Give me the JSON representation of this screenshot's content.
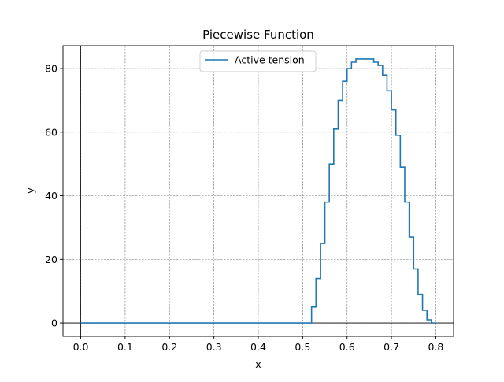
{
  "chart_data": {
    "type": "line",
    "title": "Piecewise Function",
    "xlabel": "x",
    "ylabel": "y",
    "xlim": [
      -0.04,
      0.84
    ],
    "ylim": [
      -4.2,
      87.2
    ],
    "xticks": [
      0.0,
      0.1,
      0.2,
      0.3,
      0.4,
      0.5,
      0.6,
      0.7,
      0.8
    ],
    "xtick_labels": [
      "0.0",
      "0.1",
      "0.2",
      "0.3",
      "0.4",
      "0.5",
      "0.6",
      "0.7",
      "0.8"
    ],
    "yticks": [
      0,
      20,
      40,
      60,
      80
    ],
    "ytick_labels": [
      "0",
      "20",
      "40",
      "60",
      "80"
    ],
    "grid": true,
    "grid_style": "dashed",
    "zero_lines": true,
    "legend_position": "upper center",
    "series": [
      {
        "name": "Active tension",
        "color": "#1f77b4",
        "step": true,
        "x": [
          0.0,
          0.05,
          0.1,
          0.15,
          0.2,
          0.25,
          0.3,
          0.35,
          0.4,
          0.45,
          0.5,
          0.51,
          0.52,
          0.53,
          0.54,
          0.55,
          0.56,
          0.57,
          0.58,
          0.59,
          0.6,
          0.61,
          0.62,
          0.63,
          0.64,
          0.65,
          0.66,
          0.67,
          0.68,
          0.69,
          0.7,
          0.71,
          0.72,
          0.73,
          0.74,
          0.75,
          0.76,
          0.77,
          0.78,
          0.79,
          0.8
        ],
        "y": [
          0,
          0,
          0,
          0,
          0,
          0,
          0,
          0,
          0,
          0,
          0,
          0,
          5,
          14,
          25,
          38,
          50,
          61,
          70,
          76,
          80,
          82,
          83,
          83,
          83,
          83,
          82,
          81,
          78,
          73,
          67,
          59,
          49,
          38,
          27,
          17,
          9,
          4,
          1,
          0,
          0
        ]
      }
    ]
  }
}
